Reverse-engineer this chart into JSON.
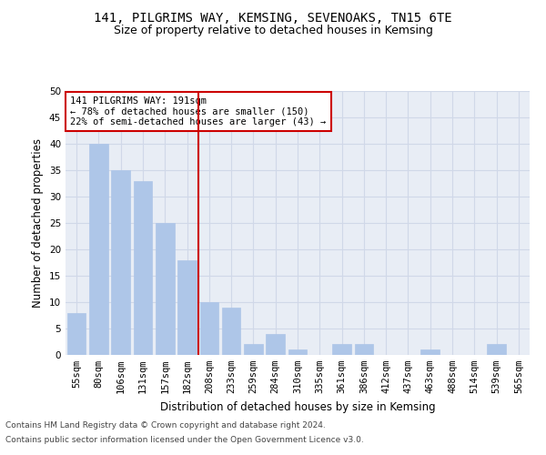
{
  "title_line1": "141, PILGRIMS WAY, KEMSING, SEVENOAKS, TN15 6TE",
  "title_line2": "Size of property relative to detached houses in Kemsing",
  "xlabel": "Distribution of detached houses by size in Kemsing",
  "ylabel": "Number of detached properties",
  "categories": [
    "55sqm",
    "80sqm",
    "106sqm",
    "131sqm",
    "157sqm",
    "182sqm",
    "208sqm",
    "233sqm",
    "259sqm",
    "284sqm",
    "310sqm",
    "335sqm",
    "361sqm",
    "386sqm",
    "412sqm",
    "437sqm",
    "463sqm",
    "488sqm",
    "514sqm",
    "539sqm",
    "565sqm"
  ],
  "values": [
    8,
    40,
    35,
    33,
    25,
    18,
    10,
    9,
    2,
    4,
    1,
    0,
    2,
    2,
    0,
    0,
    1,
    0,
    0,
    2,
    0
  ],
  "bar_color": "#aec6e8",
  "bar_edge_color": "#aec6e8",
  "grid_color": "#d0d8e8",
  "background_color": "#e8edf5",
  "vline_x": 5.5,
  "vline_color": "#cc0000",
  "annotation_text_line1": "141 PILGRIMS WAY: 191sqm",
  "annotation_text_line2": "← 78% of detached houses are smaller (150)",
  "annotation_text_line3": "22% of semi-detached houses are larger (43) →",
  "annotation_box_color": "#cc0000",
  "ylim": [
    0,
    50
  ],
  "yticks": [
    0,
    5,
    10,
    15,
    20,
    25,
    30,
    35,
    40,
    45,
    50
  ],
  "footer_line1": "Contains HM Land Registry data © Crown copyright and database right 2024.",
  "footer_line2": "Contains public sector information licensed under the Open Government Licence v3.0.",
  "title_fontsize": 10,
  "subtitle_fontsize": 9,
  "axis_label_fontsize": 8.5,
  "tick_fontsize": 7.5,
  "annotation_fontsize": 7.5,
  "footer_fontsize": 6.5
}
